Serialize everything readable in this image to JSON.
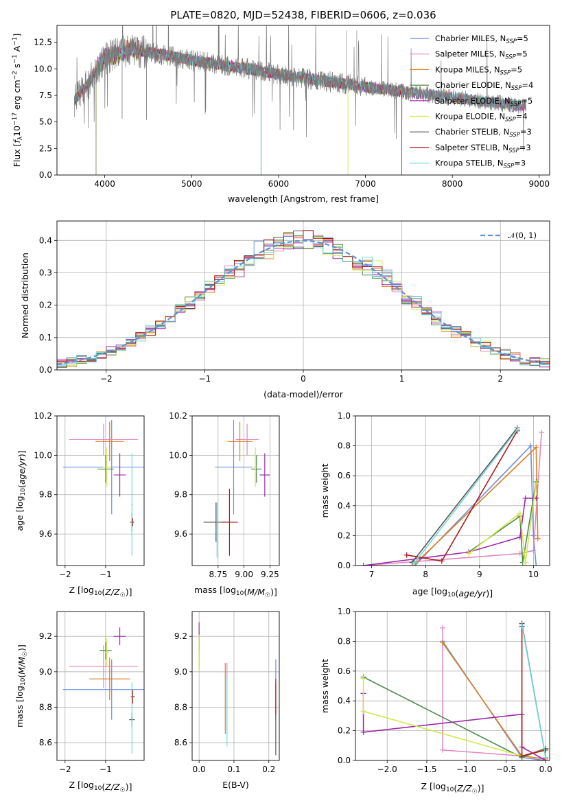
{
  "colors": {
    "Chabrier MILES": "#6b8fe0",
    "Salpeter MILES": "#e088c0",
    "Kroupa MILES": "#e07b20",
    "Chabrier ELODIE": "#4a8a4a",
    "Salpeter ELODIE": "#9a2aa8",
    "Kroupa ELODIE": "#d4e84a",
    "Chabrier STELIB": "#555555",
    "Salpeter STELIB": "#b01818",
    "Kroupa STELIB": "#70d8d8"
  },
  "chart_data": [
    {
      "id": "spectrum",
      "type": "line",
      "title": "PLATE=0820, MJD=52438, FIBERID=0606, z=0.036",
      "xlabel": "wavelength [Angstrom, rest frame]",
      "ylabel": "Flux [f_λ 10^-17 erg cm^-2 s^-1 A^-1]",
      "xlim": [
        3450,
        9120
      ],
      "ylim": [
        0,
        14.1
      ],
      "xticks": [
        4000,
        5000,
        6000,
        7000,
        8000,
        9000
      ],
      "yticks": [
        0.0,
        2.5,
        5.0,
        7.5,
        10.0,
        12.5
      ],
      "grid": false,
      "legend_position": "top-right",
      "legend": [
        "Chabrier MILES, N_SSP=5",
        "Salpeter MILES, N_SSP=5",
        "Kroupa MILES, N_SSP=5",
        "Chabrier ELODIE, N_SSP=4",
        "Salpeter ELODIE, N_SSP=5",
        "Kroupa ELODIE, N_SSP=4",
        "Chabrier STELIB, N_SSP=3",
        "Salpeter STELIB, N_SSP=3",
        "Kroupa STELIB, N_SSP=3"
      ],
      "observed_continuum": [
        [
          3650,
          7.0
        ],
        [
          3800,
          8.5
        ],
        [
          4000,
          11.0
        ],
        [
          4300,
          11.8
        ],
        [
          4700,
          11.3
        ],
        [
          5000,
          10.8
        ],
        [
          5500,
          10.2
        ],
        [
          6000,
          9.5
        ],
        [
          6500,
          8.9
        ],
        [
          7000,
          8.3
        ],
        [
          7500,
          7.8
        ],
        [
          8000,
          7.3
        ],
        [
          8500,
          6.8
        ],
        [
          8850,
          6.5
        ]
      ],
      "model_features": {
        "Kroupa ELODIE": {
          "range": [
            3900,
            6800
          ],
          "drop_at": [
            3900,
            6800
          ]
        },
        "Kroupa STELIB": {
          "range": [
            3650,
            8800
          ],
          "drop_at": [
            5800
          ]
        },
        "Salpeter STELIB": {
          "range": [
            3650,
            7420
          ],
          "drop_at": [
            7420
          ]
        },
        "Chabrier MILES": {
          "range": [
            3650,
            7420
          ]
        }
      }
    },
    {
      "id": "residuals",
      "type": "histogram",
      "xlabel": "(data-model)/error",
      "ylabel": "Normed distribution",
      "xlim": [
        -2.5,
        2.5
      ],
      "ylim": [
        0,
        0.46
      ],
      "xticks": [
        -2,
        -1,
        0,
        1,
        2
      ],
      "yticks": [
        0.0,
        0.1,
        0.2,
        0.3,
        0.4
      ],
      "grid": true,
      "legend_position": "top-right",
      "legend": [
        "𝒩(0, 1)"
      ],
      "reference": "standard normal, dashed"
    },
    {
      "id": "age_vs_Z",
      "type": "errorbar",
      "xlabel": "Z [log10(Z/Z☉)]",
      "ylabel": "age  [log10(age/yr)]",
      "xlim": [
        -2.2,
        -0.05
      ],
      "ylim": [
        9.44,
        10.2
      ],
      "xticks": [
        -2,
        -1
      ],
      "yticks": [
        9.6,
        9.8,
        10.0,
        10.2
      ],
      "grid": true,
      "points": [
        {
          "model": "Chabrier MILES",
          "x": -0.85,
          "y": 9.94,
          "xerr": 1.2,
          "yerr": 0.24
        },
        {
          "model": "Salpeter MILES",
          "x": -1.05,
          "y": 10.08,
          "xerr": 0.85,
          "yerr": 0.08
        },
        {
          "model": "Kroupa MILES",
          "x": -0.9,
          "y": 10.07,
          "xerr": 0.35,
          "yerr": 0.1
        },
        {
          "model": "Chabrier ELODIE",
          "x": -1.0,
          "y": 9.93,
          "xerr": 0.2,
          "yerr": 0.07
        },
        {
          "model": "Salpeter ELODIE",
          "x": -0.65,
          "y": 9.9,
          "xerr": 0.15,
          "yerr": 0.11
        },
        {
          "model": "Kroupa ELODIE",
          "x": -0.97,
          "y": 9.94,
          "xerr": 0.1,
          "yerr": 0.1
        },
        {
          "model": "Chabrier STELIB",
          "x": -0.35,
          "y": 9.66,
          "xerr": 0.05,
          "yerr": 0.05
        },
        {
          "model": "Salpeter STELIB",
          "x": -0.33,
          "y": 9.66,
          "xerr": 0.03,
          "yerr": 0.02
        },
        {
          "model": "Kroupa STELIB",
          "x": -0.35,
          "y": 9.75,
          "xerr": 0.02,
          "yerr": 0.26
        }
      ]
    },
    {
      "id": "age_vs_mass",
      "type": "errorbar",
      "xlabel": "mass [log10(M/M☉)]",
      "ylabel": "",
      "xlim": [
        8.5,
        9.34
      ],
      "ylim": [
        9.44,
        10.2
      ],
      "xticks": [
        8.75,
        9.0,
        9.25
      ],
      "yticks": [
        9.6,
        9.8,
        10.0,
        10.2
      ],
      "grid": true,
      "points": [
        {
          "model": "Chabrier MILES",
          "x": 8.9,
          "y": 9.94,
          "xerr": 0.18,
          "yerr": 0.24
        },
        {
          "model": "Salpeter MILES",
          "x": 9.03,
          "y": 10.08,
          "xerr": 0.11,
          "yerr": 0.08
        },
        {
          "model": "Kroupa MILES",
          "x": 8.96,
          "y": 10.07,
          "xerr": 0.12,
          "yerr": 0.1
        },
        {
          "model": "Chabrier ELODIE",
          "x": 9.12,
          "y": 9.93,
          "xerr": 0.05,
          "yerr": 0.07
        },
        {
          "model": "Salpeter ELODIE",
          "x": 9.2,
          "y": 9.9,
          "xerr": 0.05,
          "yerr": 0.11
        },
        {
          "model": "Kroupa ELODIE",
          "x": 9.11,
          "y": 9.94,
          "xerr": 0.02,
          "yerr": 0.1
        },
        {
          "model": "Chabrier STELIB",
          "x": 8.73,
          "y": 9.66,
          "xerr": 0.12,
          "yerr": 0.1
        },
        {
          "model": "Salpeter STELIB",
          "x": 8.86,
          "y": 9.66,
          "xerr": 0.08,
          "yerr": 0.17
        },
        {
          "model": "Kroupa STELIB",
          "x": 8.74,
          "y": 9.62,
          "xerr": 0.01,
          "yerr": 0.14
        }
      ]
    },
    {
      "id": "weight_vs_age",
      "type": "line",
      "xlabel": "age  [log10(age/yr)]",
      "ylabel": "mass weight",
      "xlim": [
        6.7,
        10.3
      ],
      "ylim": [
        0,
        1.0
      ],
      "xticks": [
        7,
        8,
        9,
        10
      ],
      "yticks": [
        0.0,
        0.2,
        0.4,
        0.6,
        0.8,
        1.0
      ],
      "grid": true,
      "series": [
        {
          "model": "Chabrier MILES",
          "points": [
            [
              7.8,
              0.0
            ],
            [
              9.95,
              0.8
            ],
            [
              10.0,
              0.2
            ],
            [
              10.05,
              0.0
            ]
          ]
        },
        {
          "model": "Salpeter MILES",
          "points": [
            [
              6.85,
              0.0
            ],
            [
              9.75,
              0.08
            ],
            [
              10.0,
              0.1
            ],
            [
              10.15,
              0.89
            ]
          ]
        },
        {
          "model": "Kroupa MILES",
          "points": [
            [
              7.8,
              0.01
            ],
            [
              10.05,
              0.79
            ],
            [
              10.08,
              0.18
            ]
          ]
        },
        {
          "model": "Chabrier ELODIE",
          "points": [
            [
              8.8,
              0.09
            ],
            [
              9.75,
              0.33
            ],
            [
              9.8,
              0.02
            ],
            [
              10.05,
              0.56
            ]
          ]
        },
        {
          "model": "Salpeter ELODIE",
          "points": [
            [
              6.85,
              0.0
            ],
            [
              8.8,
              0.09
            ],
            [
              9.75,
              0.19
            ],
            [
              9.85,
              0.45
            ],
            [
              10.05,
              0.45
            ]
          ]
        },
        {
          "model": "Kroupa ELODIE",
          "points": [
            [
              8.8,
              0.08
            ],
            [
              9.75,
              0.35
            ],
            [
              9.85,
              0.02
            ],
            [
              10.05,
              0.55
            ]
          ]
        },
        {
          "model": "Chabrier STELIB",
          "points": [
            [
              7.75,
              0.02
            ],
            [
              9.7,
              0.92
            ]
          ]
        },
        {
          "model": "Salpeter STELIB",
          "points": [
            [
              7.65,
              0.07
            ],
            [
              8.3,
              0.03
            ],
            [
              9.7,
              0.9
            ]
          ]
        },
        {
          "model": "Kroupa STELIB",
          "points": [
            [
              7.8,
              0.02
            ],
            [
              9.7,
              0.91
            ]
          ]
        }
      ]
    },
    {
      "id": "mass_vs_Z",
      "type": "errorbar",
      "xlabel": "Z [log10(Z/Z☉)]",
      "ylabel": "mass [log10(M/M☉)]",
      "xlim": [
        -2.2,
        -0.05
      ],
      "ylim": [
        8.5,
        9.34
      ],
      "xticks": [
        -2,
        -1
      ],
      "yticks": [
        8.6,
        8.8,
        9.0,
        9.2
      ],
      "grid": true,
      "points": [
        {
          "model": "Chabrier MILES",
          "x": -0.85,
          "y": 8.9,
          "xerr": 1.2,
          "yerr": 0.17
        },
        {
          "model": "Salpeter MILES",
          "x": -1.05,
          "y": 9.03,
          "xerr": 0.85,
          "yerr": 0.12
        },
        {
          "model": "Kroupa MILES",
          "x": -0.9,
          "y": 8.96,
          "xerr": 0.5,
          "yerr": 0.12
        },
        {
          "model": "Chabrier ELODIE",
          "x": -1.0,
          "y": 9.12,
          "xerr": 0.15,
          "yerr": 0.05
        },
        {
          "model": "Salpeter ELODIE",
          "x": -0.65,
          "y": 9.2,
          "xerr": 0.15,
          "yerr": 0.05
        },
        {
          "model": "Kroupa ELODIE",
          "x": -0.97,
          "y": 9.11,
          "xerr": 0.05,
          "yerr": 0.08
        },
        {
          "model": "Chabrier STELIB",
          "x": -0.35,
          "y": 8.73,
          "xerr": 0.07,
          "yerr": 0.04
        },
        {
          "model": "Salpeter STELIB",
          "x": -0.33,
          "y": 8.86,
          "xerr": 0.05,
          "yerr": 0.04
        },
        {
          "model": "Kroupa STELIB",
          "x": -0.35,
          "y": 8.74,
          "xerr": 0.02,
          "yerr": 0.2
        }
      ]
    },
    {
      "id": "mass_vs_ebv",
      "type": "errorbar",
      "xlabel": "E(B-V)",
      "ylabel": "",
      "xlim": [
        -0.02,
        0.23
      ],
      "ylim": [
        8.5,
        9.34
      ],
      "xticks": [
        0.0,
        0.1,
        0.2
      ],
      "yticks": [
        8.6,
        8.8,
        9.0,
        9.2
      ],
      "grid": true,
      "points": [
        {
          "model": "Chabrier MILES",
          "x": 0.22,
          "y": 8.9,
          "yerr": 0.17
        },
        {
          "model": "Salpeter MILES",
          "x": 0.08,
          "y": 8.85,
          "yerr": 0.2
        },
        {
          "model": "Kroupa MILES",
          "x": 0.075,
          "y": 8.85,
          "yerr": 0.2
        },
        {
          "model": "Chabrier ELODIE",
          "x": 0.0,
          "y": 9.12,
          "yerr": 0.1
        },
        {
          "model": "Salpeter ELODIE",
          "x": 0.0,
          "y": 9.2,
          "yerr": 0.08
        },
        {
          "model": "Kroupa ELODIE",
          "x": 0.0,
          "y": 9.11,
          "yerr": 0.1
        },
        {
          "model": "Chabrier STELIB",
          "x": 0.22,
          "y": 8.73,
          "yerr": 0.2
        },
        {
          "model": "Salpeter STELIB",
          "x": 0.22,
          "y": 8.86,
          "yerr": 0.1
        },
        {
          "model": "Kroupa STELIB",
          "x": 0.08,
          "y": 8.78,
          "yerr": 0.2
        }
      ]
    },
    {
      "id": "weight_vs_Z",
      "type": "line",
      "xlabel": "Z [log10(Z/Z☉)]",
      "ylabel": "mass weight",
      "xlim": [
        -2.4,
        0.05
      ],
      "ylim": [
        0,
        1.0
      ],
      "xticks": [
        -2.0,
        -1.5,
        -1.0,
        -0.5,
        0.0
      ],
      "yticks": [
        0.0,
        0.2,
        0.4,
        0.6,
        0.8,
        1.0
      ],
      "grid": true,
      "series": [
        {
          "model": "Chabrier MILES",
          "points": [
            [
              -1.3,
              0.8
            ],
            [
              -0.3,
              0.02
            ],
            [
              0.0,
              0.0
            ]
          ]
        },
        {
          "model": "Salpeter MILES",
          "points": [
            [
              -1.3,
              0.89
            ],
            [
              -1.3,
              0.07
            ],
            [
              -0.3,
              0.03
            ],
            [
              0.0,
              0.08
            ]
          ]
        },
        {
          "model": "Kroupa MILES",
          "points": [
            [
              -1.3,
              0.79
            ],
            [
              -0.3,
              0.03
            ],
            [
              0.0,
              0.01
            ]
          ]
        },
        {
          "model": "Chabrier ELODIE",
          "points": [
            [
              -2.3,
              0.56
            ],
            [
              -0.3,
              0.02
            ],
            [
              0.0,
              0.08
            ]
          ]
        },
        {
          "model": "Salpeter ELODIE",
          "points": [
            [
              -2.3,
              0.45
            ],
            [
              -2.3,
              0.19
            ],
            [
              -0.3,
              0.31
            ],
            [
              -0.3,
              0.09
            ],
            [
              0.0,
              0.0
            ]
          ]
        },
        {
          "model": "Kroupa ELODIE",
          "points": [
            [
              -2.3,
              0.55
            ],
            [
              -2.3,
              0.33
            ],
            [
              -0.3,
              0.03
            ],
            [
              0.0,
              0.07
            ]
          ]
        },
        {
          "model": "Chabrier STELIB",
          "points": [
            [
              -0.3,
              0.92
            ],
            [
              0.0,
              0.02
            ]
          ]
        },
        {
          "model": "Salpeter STELIB",
          "points": [
            [
              -0.3,
              0.9
            ],
            [
              -0.3,
              0.03
            ],
            [
              0.0,
              0.07
            ]
          ]
        },
        {
          "model": "Kroupa STELIB",
          "points": [
            [
              -0.3,
              0.91
            ],
            [
              0.0,
              0.02
            ]
          ]
        }
      ]
    }
  ]
}
